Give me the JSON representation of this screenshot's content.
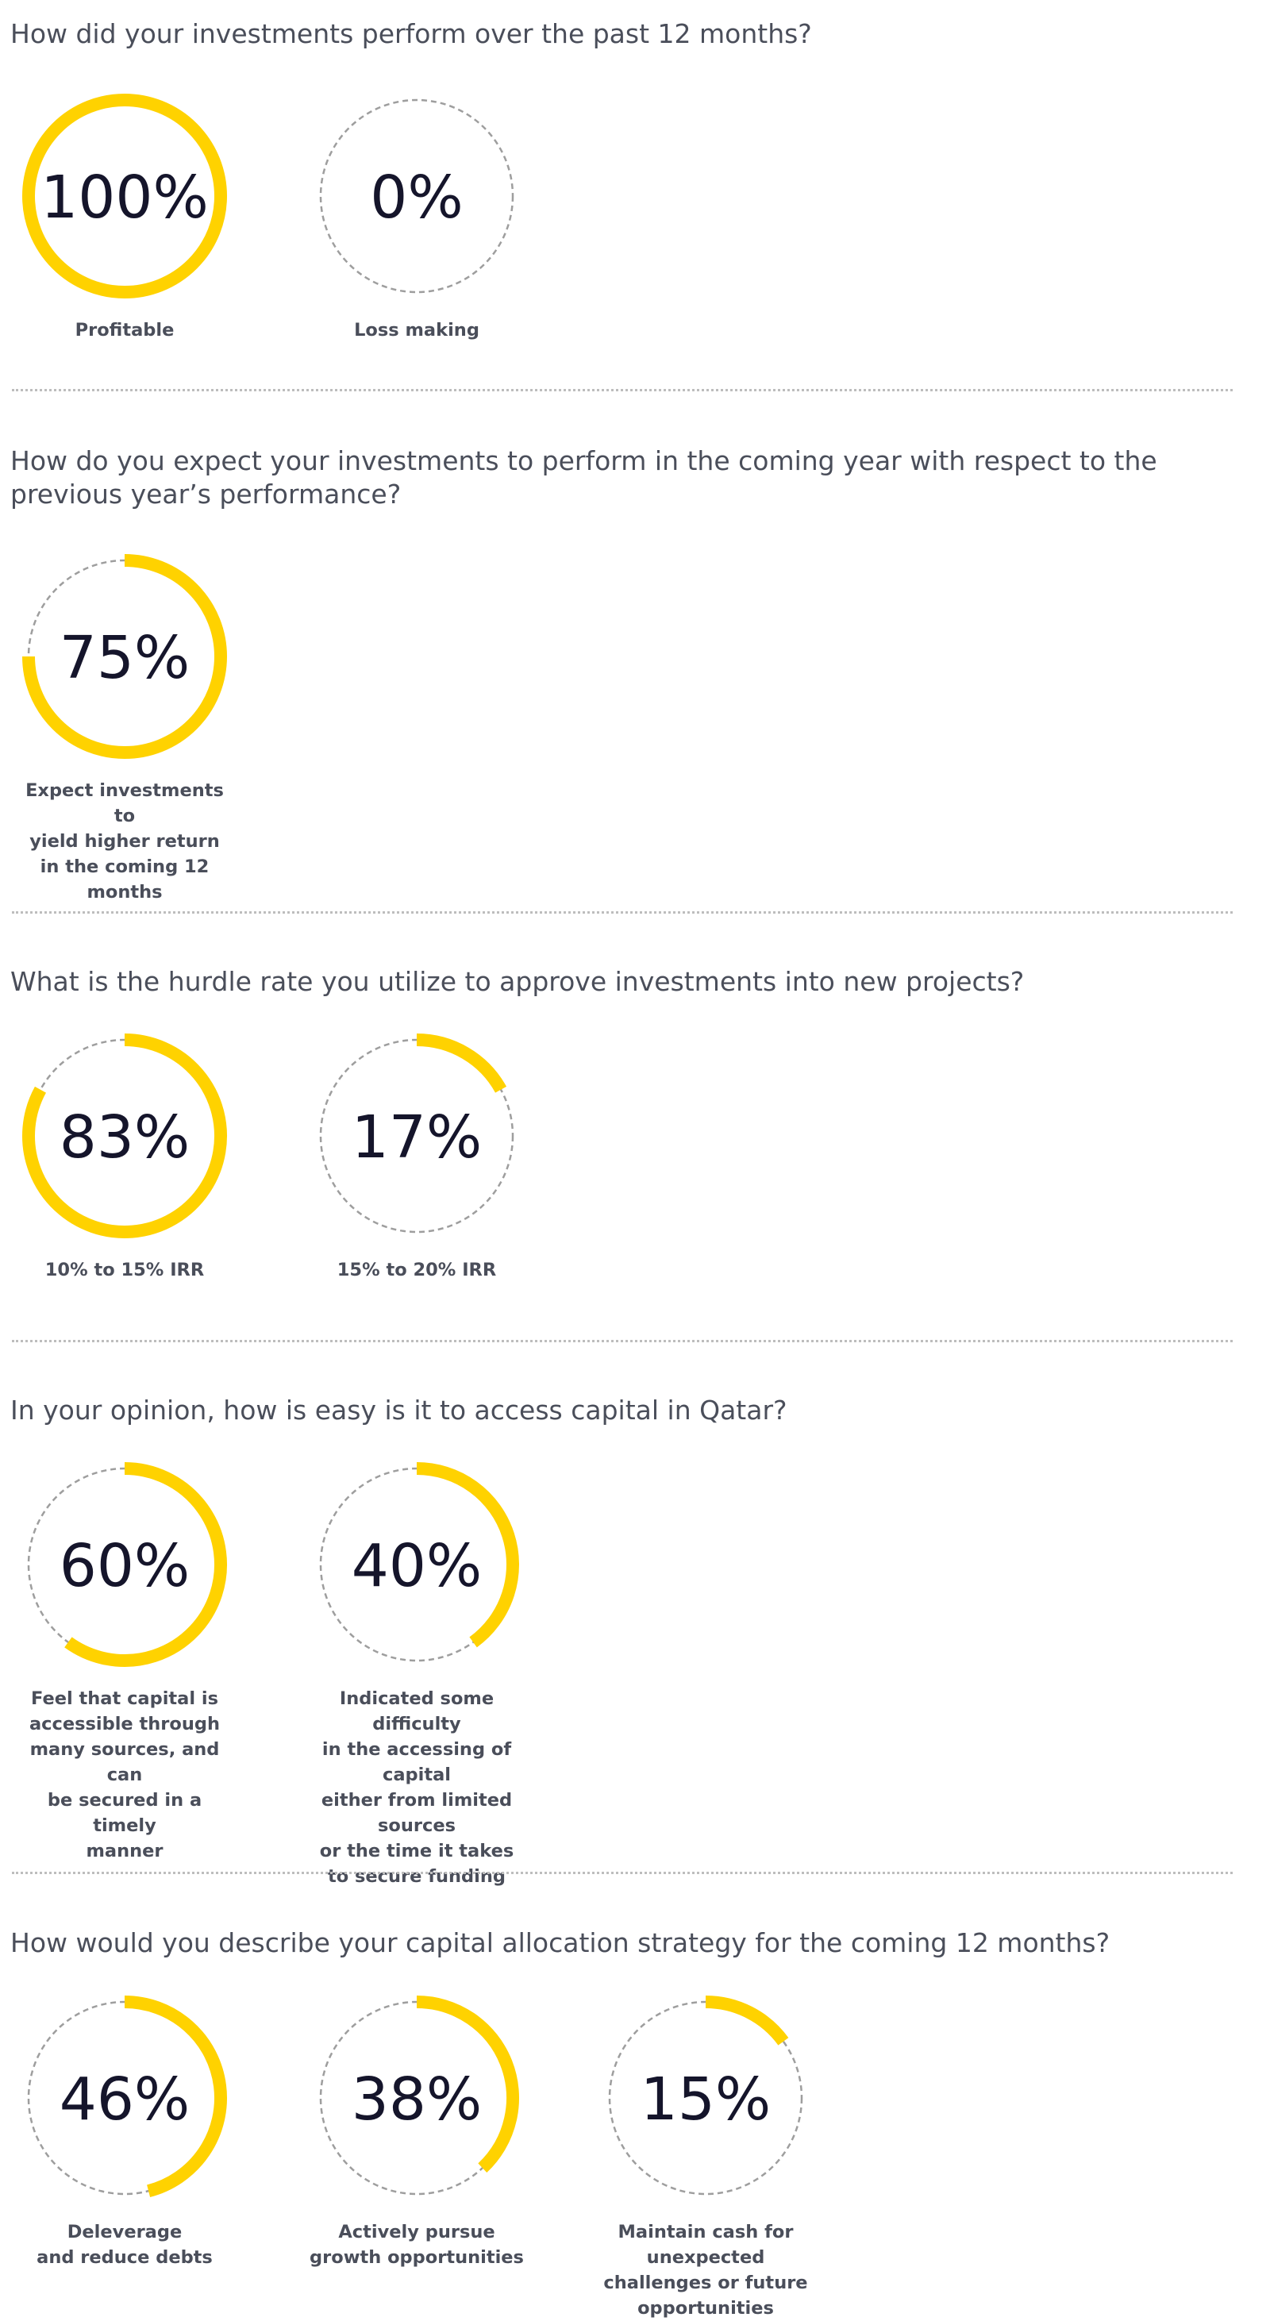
{
  "colors": {
    "accent": "#ffd200",
    "track": "#9e9e9e",
    "value_text": "#15152b",
    "text": "#4a4e5a",
    "divider": "#bdbdbd"
  },
  "chart_data": [
    {
      "type": "donut",
      "title": "How did your investments perform over the past 12 months?",
      "items": [
        {
          "value": 100,
          "display": "100%",
          "label": "Profitable"
        },
        {
          "value": 0,
          "display": "0%",
          "label": "Loss making"
        }
      ]
    },
    {
      "type": "donut",
      "title": "How do you expect your investments to perform in the coming year with respect to the\nprevious year’s performance?",
      "items": [
        {
          "value": 75,
          "display": "75%",
          "label": "Expect investments to\nyield higher return\nin the coming 12 months"
        }
      ]
    },
    {
      "type": "donut",
      "title": "What is the hurdle rate you utilize to approve investments into new projects?",
      "items": [
        {
          "value": 83,
          "display": "83%",
          "label": "10% to 15% IRR"
        },
        {
          "value": 17,
          "display": "17%",
          "label": "15% to 20% IRR"
        }
      ]
    },
    {
      "type": "donut",
      "title": "In your opinion, how is easy is it to access capital in Qatar?",
      "items": [
        {
          "value": 60,
          "display": "60%",
          "label": "Feel that capital is\naccessible through\nmany sources, and can\nbe secured in a timely\nmanner"
        },
        {
          "value": 40,
          "display": "40%",
          "label": "Indicated some difficulty\nin the accessing of capital\neither from limited sources\nor the time it takes\nto secure funding"
        }
      ]
    },
    {
      "type": "donut",
      "title": "How would you describe your capital allocation strategy for the coming 12 months?",
      "items": [
        {
          "value": 46,
          "display": "46%",
          "label": "Deleverage\nand reduce debts"
        },
        {
          "value": 38,
          "display": "38%",
          "label": "Actively pursue\ngrowth opportunities"
        },
        {
          "value": 15,
          "display": "15%",
          "label": "Maintain cash for unexpected\nchallenges or future opportunities"
        }
      ]
    }
  ]
}
